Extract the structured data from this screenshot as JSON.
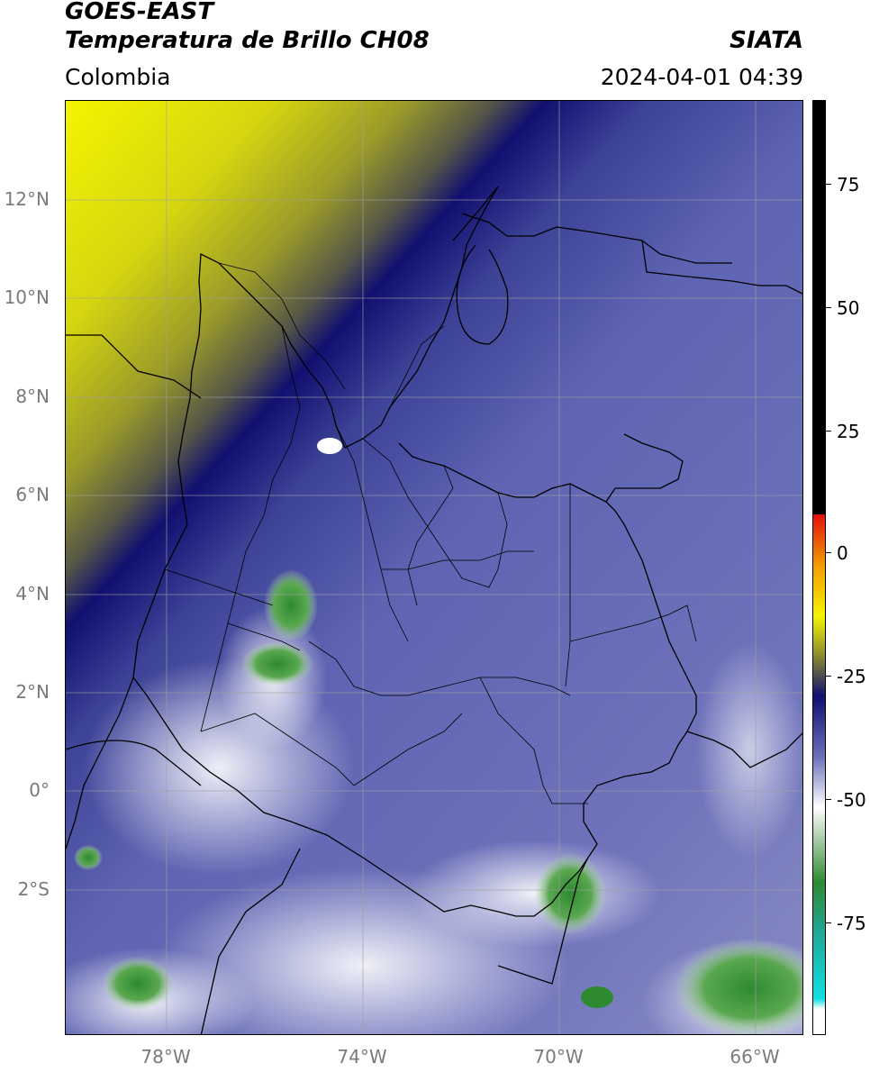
{
  "header": {
    "satellite": "GOES-EAST",
    "product": "Temperatura de Brillo CH08",
    "region": "Colombia",
    "organization": "SIATA",
    "timestamp": "2024-04-01 04:39"
  },
  "map": {
    "lat_labels": [
      "12°N",
      "10°N",
      "8°N",
      "6°N",
      "4°N",
      "2°N",
      "0°",
      "2°S"
    ],
    "lon_labels": [
      "78°W",
      "74°W",
      "70°W",
      "66°W"
    ],
    "extent": {
      "lon_min": -79.8,
      "lon_max": -64.9,
      "lat_min": -4.9,
      "lat_max": 14.0
    },
    "gridlines": true
  },
  "colorbar": {
    "tick_labels": [
      "75",
      "50",
      "25",
      "0",
      "-25",
      "-50",
      "-75"
    ],
    "range": [
      -95,
      90
    ],
    "colors": {
      "hot_black": "#000000",
      "red": "#e0110e",
      "orange": "#f39b00",
      "yellow": "#f4f400",
      "dark_yellow": "#8a8a30",
      "navy": "#101070",
      "periwinkle": "#6a70b8",
      "white": "#ffffff",
      "green": "#2e8a30",
      "teal": "#20a89a",
      "cyan": "#10e0e0"
    }
  }
}
